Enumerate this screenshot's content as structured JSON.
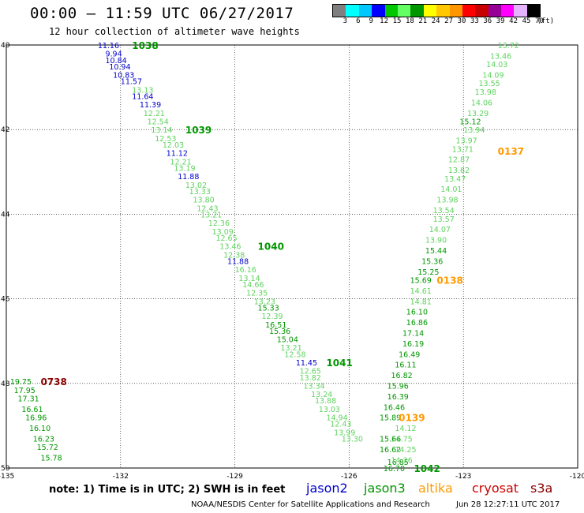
{
  "header": {
    "title": "00:00 – 11:59 UTC 06/27/2017",
    "subtitle": "12 hour collection of altimeter wave heights"
  },
  "colorbar": {
    "colors": [
      "#7f7f7f",
      "#00ffff",
      "#00c8ff",
      "#0000ff",
      "#00c800",
      "#64ff64",
      "#009600",
      "#ffff00",
      "#ffc800",
      "#ff9600",
      "#ff0000",
      "#c80000",
      "#960096",
      "#ff00ff",
      "#e6b4ff",
      "#000000"
    ],
    "labels": [
      "3",
      "6",
      "9",
      "12",
      "15",
      "18",
      "21",
      "24",
      "27",
      "30",
      "33",
      "36",
      "39",
      "42",
      "45",
      "70",
      "(ft)"
    ]
  },
  "axes": {
    "lat_labels": [
      "40",
      "42",
      "44",
      "46",
      "48",
      "50"
    ],
    "lon_labels": [
      "-135",
      "-132",
      "-129",
      "-126",
      "-123",
      "-120"
    ],
    "lat_range": [
      40,
      50
    ],
    "lon_range": [
      -135,
      -120
    ]
  },
  "satellite_colors": {
    "jason2": "#0000cc",
    "jason3": "#009600",
    "jason3_light": "#5fd35f",
    "altika": "#ff9900",
    "cryosat": "#cc0000",
    "s3a": "#8b0000"
  },
  "tracks": [
    {
      "time": "1038",
      "time_color": "#009600",
      "time_lat": 40.0,
      "time_lon": -131.7,
      "points": [
        {
          "v": "11.16",
          "lat": 40.0,
          "lon": -132.6,
          "c": "#0000cc"
        },
        {
          "v": "9.94",
          "lat": 40.2,
          "lon": -132.4,
          "c": "#0000cc"
        },
        {
          "v": "10.84",
          "lat": 40.35,
          "lon": -132.4,
          "c": "#0000cc"
        },
        {
          "v": "10.94",
          "lat": 40.5,
          "lon": -132.3,
          "c": "#0000cc"
        },
        {
          "v": "10.83",
          "lat": 40.7,
          "lon": -132.2,
          "c": "#0000cc"
        },
        {
          "v": "11.57",
          "lat": 40.85,
          "lon": -132.0,
          "c": "#0000cc"
        },
        {
          "v": "13.13",
          "lat": 41.05,
          "lon": -131.7,
          "c": "#5fd35f"
        },
        {
          "v": "11.64",
          "lat": 41.2,
          "lon": -131.7,
          "c": "#0000cc"
        },
        {
          "v": "11.39",
          "lat": 41.4,
          "lon": -131.5,
          "c": "#0000cc"
        },
        {
          "v": "12.21",
          "lat": 41.6,
          "lon": -131.4,
          "c": "#5fd35f"
        },
        {
          "v": "12.54",
          "lat": 41.8,
          "lon": -131.3,
          "c": "#5fd35f"
        },
        {
          "v": "13.14",
          "lat": 42.0,
          "lon": -131.2,
          "c": "#5fd35f"
        },
        {
          "v": "12.53",
          "lat": 42.2,
          "lon": -131.1,
          "c": "#5fd35f"
        },
        {
          "v": "12.03",
          "lat": 42.35,
          "lon": -130.9,
          "c": "#5fd35f"
        },
        {
          "v": "11.12",
          "lat": 42.55,
          "lon": -130.8,
          "c": "#0000cc"
        },
        {
          "v": "12.21",
          "lat": 42.75,
          "lon": -130.7,
          "c": "#5fd35f"
        },
        {
          "v": "13.19",
          "lat": 42.9,
          "lon": -130.6,
          "c": "#5fd35f"
        },
        {
          "v": "11.88",
          "lat": 43.1,
          "lon": -130.5,
          "c": "#0000cc"
        },
        {
          "v": "13.02",
          "lat": 43.3,
          "lon": -130.3,
          "c": "#5fd35f"
        },
        {
          "v": "13.33",
          "lat": 43.45,
          "lon": -130.2,
          "c": "#5fd35f"
        },
        {
          "v": "13.80",
          "lat": 43.65,
          "lon": -130.1,
          "c": "#5fd35f"
        },
        {
          "v": "12.43",
          "lat": 43.85,
          "lon": -130.0,
          "c": "#5fd35f"
        },
        {
          "v": "13.21",
          "lat": 44.0,
          "lon": -129.9,
          "c": "#5fd35f"
        },
        {
          "v": "12.36",
          "lat": 44.2,
          "lon": -129.7,
          "c": "#5fd35f"
        },
        {
          "v": "13.09",
          "lat": 44.4,
          "lon": -129.6,
          "c": "#5fd35f"
        },
        {
          "v": "12.65",
          "lat": 44.55,
          "lon": -129.5,
          "c": "#5fd35f"
        },
        {
          "v": "13.46",
          "lat": 44.75,
          "lon": -129.4,
          "c": "#5fd35f"
        },
        {
          "v": "12.38",
          "lat": 44.95,
          "lon": -129.3,
          "c": "#5fd35f"
        },
        {
          "v": "11.88",
          "lat": 45.1,
          "lon": -129.2,
          "c": "#0000cc"
        },
        {
          "v": "16.16",
          "lat": 45.3,
          "lon": -129.0,
          "c": "#5fd35f"
        },
        {
          "v": "13.14",
          "lat": 45.5,
          "lon": -128.9,
          "c": "#5fd35f"
        },
        {
          "v": "14.66",
          "lat": 45.65,
          "lon": -128.8,
          "c": "#5fd35f"
        },
        {
          "v": "12.35",
          "lat": 45.85,
          "lon": -128.7,
          "c": "#5fd35f"
        },
        {
          "v": "13.23",
          "lat": 46.05,
          "lon": -128.5,
          "c": "#5fd35f"
        },
        {
          "v": "15.33",
          "lat": 46.2,
          "lon": -128.4,
          "c": "#009600"
        },
        {
          "v": "12.39",
          "lat": 46.4,
          "lon": -128.3,
          "c": "#5fd35f"
        },
        {
          "v": "16.51",
          "lat": 46.6,
          "lon": -128.2,
          "c": "#009600"
        },
        {
          "v": "15.36",
          "lat": 46.75,
          "lon": -128.1,
          "c": "#009600"
        },
        {
          "v": "15.04",
          "lat": 46.95,
          "lon": -127.9,
          "c": "#009600"
        },
        {
          "v": "13.21",
          "lat": 47.15,
          "lon": -127.8,
          "c": "#5fd35f"
        },
        {
          "v": "12.58",
          "lat": 47.3,
          "lon": -127.7,
          "c": "#5fd35f"
        },
        {
          "v": "11.45",
          "lat": 47.5,
          "lon": -127.4,
          "c": "#0000cc"
        },
        {
          "v": "12.65",
          "lat": 47.7,
          "lon": -127.3,
          "c": "#5fd35f"
        },
        {
          "v": "13.82",
          "lat": 47.85,
          "lon": -127.3,
          "c": "#5fd35f"
        },
        {
          "v": "13.34",
          "lat": 48.05,
          "lon": -127.2,
          "c": "#5fd35f"
        },
        {
          "v": "13.24",
          "lat": 48.25,
          "lon": -127.0,
          "c": "#5fd35f"
        },
        {
          "v": "13.88",
          "lat": 48.4,
          "lon": -126.9,
          "c": "#5fd35f"
        },
        {
          "v": "13.03",
          "lat": 48.6,
          "lon": -126.8,
          "c": "#5fd35f"
        },
        {
          "v": "14.94",
          "lat": 48.8,
          "lon": -126.6,
          "c": "#5fd35f"
        },
        {
          "v": "12.43",
          "lat": 48.95,
          "lon": -126.5,
          "c": "#5fd35f"
        },
        {
          "v": "13.99",
          "lat": 49.15,
          "lon": -126.4,
          "c": "#5fd35f"
        },
        {
          "v": "13.30",
          "lat": 49.3,
          "lon": -126.2,
          "c": "#5fd35f"
        }
      ]
    },
    {
      "time": "1039",
      "time_color": "#009600",
      "time_lat": 42.0,
      "time_lon": -130.3,
      "points": []
    },
    {
      "time": "1040",
      "time_color": "#009600",
      "time_lat": 44.75,
      "time_lon": -128.4,
      "points": []
    },
    {
      "time": "1041",
      "time_color": "#009600",
      "time_lat": 47.5,
      "time_lon": -126.6,
      "points": []
    },
    {
      "time": "1042",
      "time_color": "#009600",
      "time_lat": 50.0,
      "time_lon": -124.3,
      "points": [
        {
          "v": "15.66",
          "lat": 49.3,
          "lon": -125.2,
          "c": "#009600"
        },
        {
          "v": "16.62",
          "lat": 49.55,
          "lon": -125.2,
          "c": "#009600"
        },
        {
          "v": "16.85",
          "lat": 49.85,
          "lon": -125.0,
          "c": "#009600"
        },
        {
          "v": "16.70",
          "lat": 50.0,
          "lon": -125.1,
          "c": "#009600"
        }
      ]
    },
    {
      "time": "0137",
      "time_color": "#ff9900",
      "time_lat": 42.5,
      "time_lon": -122.1,
      "points": [
        {
          "v": "13.72",
          "lat": 40.0,
          "lon": -122.1,
          "c": "#5fd35f"
        },
        {
          "v": "13.46",
          "lat": 40.25,
          "lon": -122.3,
          "c": "#5fd35f"
        },
        {
          "v": "14.03",
          "lat": 40.45,
          "lon": -122.4,
          "c": "#5fd35f"
        },
        {
          "v": "14.09",
          "lat": 40.7,
          "lon": -122.5,
          "c": "#5fd35f"
        },
        {
          "v": "13.55",
          "lat": 40.9,
          "lon": -122.6,
          "c": "#5fd35f"
        },
        {
          "v": "13.98",
          "lat": 41.1,
          "lon": -122.7,
          "c": "#5fd35f"
        },
        {
          "v": "14.06",
          "lat": 41.35,
          "lon": -122.8,
          "c": "#5fd35f"
        },
        {
          "v": "13.29",
          "lat": 41.6,
          "lon": -122.9,
          "c": "#5fd35f"
        },
        {
          "v": "15.12",
          "lat": 41.8,
          "lon": -123.1,
          "c": "#009600"
        },
        {
          "v": "13.94",
          "lat": 42.0,
          "lon": -123.0,
          "c": "#5fd35f"
        },
        {
          "v": "13.97",
          "lat": 42.25,
          "lon": -123.2,
          "c": "#5fd35f"
        },
        {
          "v": "13.71",
          "lat": 42.45,
          "lon": -123.3,
          "c": "#5fd35f"
        },
        {
          "v": "12.87",
          "lat": 42.7,
          "lon": -123.4,
          "c": "#5fd35f"
        },
        {
          "v": "13.62",
          "lat": 42.95,
          "lon": -123.4,
          "c": "#5fd35f"
        },
        {
          "v": "13.47",
          "lat": 43.15,
          "lon": -123.5,
          "c": "#5fd35f"
        },
        {
          "v": "14.01",
          "lat": 43.4,
          "lon": -123.6,
          "c": "#5fd35f"
        },
        {
          "v": "13.98",
          "lat": 43.65,
          "lon": -123.7,
          "c": "#5fd35f"
        },
        {
          "v": "13.54",
          "lat": 43.9,
          "lon": -123.8,
          "c": "#5fd35f"
        },
        {
          "v": "13.57",
          "lat": 44.1,
          "lon": -123.8,
          "c": "#5fd35f"
        },
        {
          "v": "14.07",
          "lat": 44.35,
          "lon": -123.9,
          "c": "#5fd35f"
        },
        {
          "v": "13.90",
          "lat": 44.6,
          "lon": -124.0,
          "c": "#5fd35f"
        },
        {
          "v": "15.44",
          "lat": 44.85,
          "lon": -124.0,
          "c": "#009600"
        },
        {
          "v": "15.36",
          "lat": 45.1,
          "lon": -124.1,
          "c": "#009600"
        },
        {
          "v": "15.25",
          "lat": 45.35,
          "lon": -124.2,
          "c": "#009600"
        },
        {
          "v": "15.69",
          "lat": 45.55,
          "lon": -124.4,
          "c": "#009600"
        },
        {
          "v": "14.61",
          "lat": 45.8,
          "lon": -124.4,
          "c": "#5fd35f"
        },
        {
          "v": "14.81",
          "lat": 46.05,
          "lon": -124.4,
          "c": "#5fd35f"
        },
        {
          "v": "16.10",
          "lat": 46.3,
          "lon": -124.5,
          "c": "#009600"
        },
        {
          "v": "16.86",
          "lat": 46.55,
          "lon": -124.5,
          "c": "#009600"
        },
        {
          "v": "17.14",
          "lat": 46.8,
          "lon": -124.6,
          "c": "#009600"
        },
        {
          "v": "16.19",
          "lat": 47.05,
          "lon": -124.6,
          "c": "#009600"
        },
        {
          "v": "16.49",
          "lat": 47.3,
          "lon": -124.7,
          "c": "#009600"
        },
        {
          "v": "16.11",
          "lat": 47.55,
          "lon": -124.8,
          "c": "#009600"
        },
        {
          "v": "16.82",
          "lat": 47.8,
          "lon": -124.9,
          "c": "#009600"
        },
        {
          "v": "15.96",
          "lat": 48.05,
          "lon": -125.0,
          "c": "#009600"
        },
        {
          "v": "16.39",
          "lat": 48.3,
          "lon": -125.0,
          "c": "#009600"
        },
        {
          "v": "16.46",
          "lat": 48.55,
          "lon": -125.1,
          "c": "#009600"
        },
        {
          "v": "15.89",
          "lat": 48.8,
          "lon": -125.2,
          "c": "#009600"
        },
        {
          "v": "14.12",
          "lat": 49.05,
          "lon": -124.8,
          "c": "#5fd35f"
        },
        {
          "v": "14.75",
          "lat": 49.3,
          "lon": -124.9,
          "c": "#5fd35f"
        },
        {
          "v": "14.25",
          "lat": 49.55,
          "lon": -124.8,
          "c": "#5fd35f"
        },
        {
          "v": "14.26",
          "lat": 49.8,
          "lon": -124.9,
          "c": "#5fd35f"
        }
      ]
    },
    {
      "time": "0138",
      "time_color": "#ff9900",
      "time_lat": 45.55,
      "time_lon": -123.7,
      "points": []
    },
    {
      "time": "0139",
      "time_color": "#ff9900",
      "time_lat": 48.8,
      "time_lon": -124.7,
      "points": []
    },
    {
      "time": "0738",
      "time_color": "#8b0000",
      "time_lat": 47.95,
      "time_lon": -134.1,
      "points": [
        {
          "v": "19.75",
          "lat": 47.95,
          "lon": -134.9,
          "c": "#009600"
        },
        {
          "v": "17.95",
          "lat": 48.15,
          "lon": -134.8,
          "c": "#009600"
        },
        {
          "v": "17.31",
          "lat": 48.35,
          "lon": -134.7,
          "c": "#009600"
        },
        {
          "v": "16.61",
          "lat": 48.6,
          "lon": -134.6,
          "c": "#009600"
        },
        {
          "v": "16.96",
          "lat": 48.8,
          "lon": -134.5,
          "c": "#009600"
        },
        {
          "v": "16.10",
          "lat": 49.05,
          "lon": -134.4,
          "c": "#009600"
        },
        {
          "v": "16.23",
          "lat": 49.3,
          "lon": -134.3,
          "c": "#009600"
        },
        {
          "v": "15.72",
          "lat": 49.5,
          "lon": -134.2,
          "c": "#009600"
        },
        {
          "v": "15.78",
          "lat": 49.75,
          "lon": -134.1,
          "c": "#009600"
        }
      ]
    }
  ],
  "footer": {
    "note": "note: 1) Time is in UTC; 2) SWH is in feet",
    "legend": [
      "jason2",
      "jason3",
      "altika",
      "cryosat",
      "s3a"
    ],
    "credit": "NOAA/NESDIS Center for Satellite Applications and Research",
    "timestamp": "Jun 28 12:27:11 UTC 2017"
  }
}
